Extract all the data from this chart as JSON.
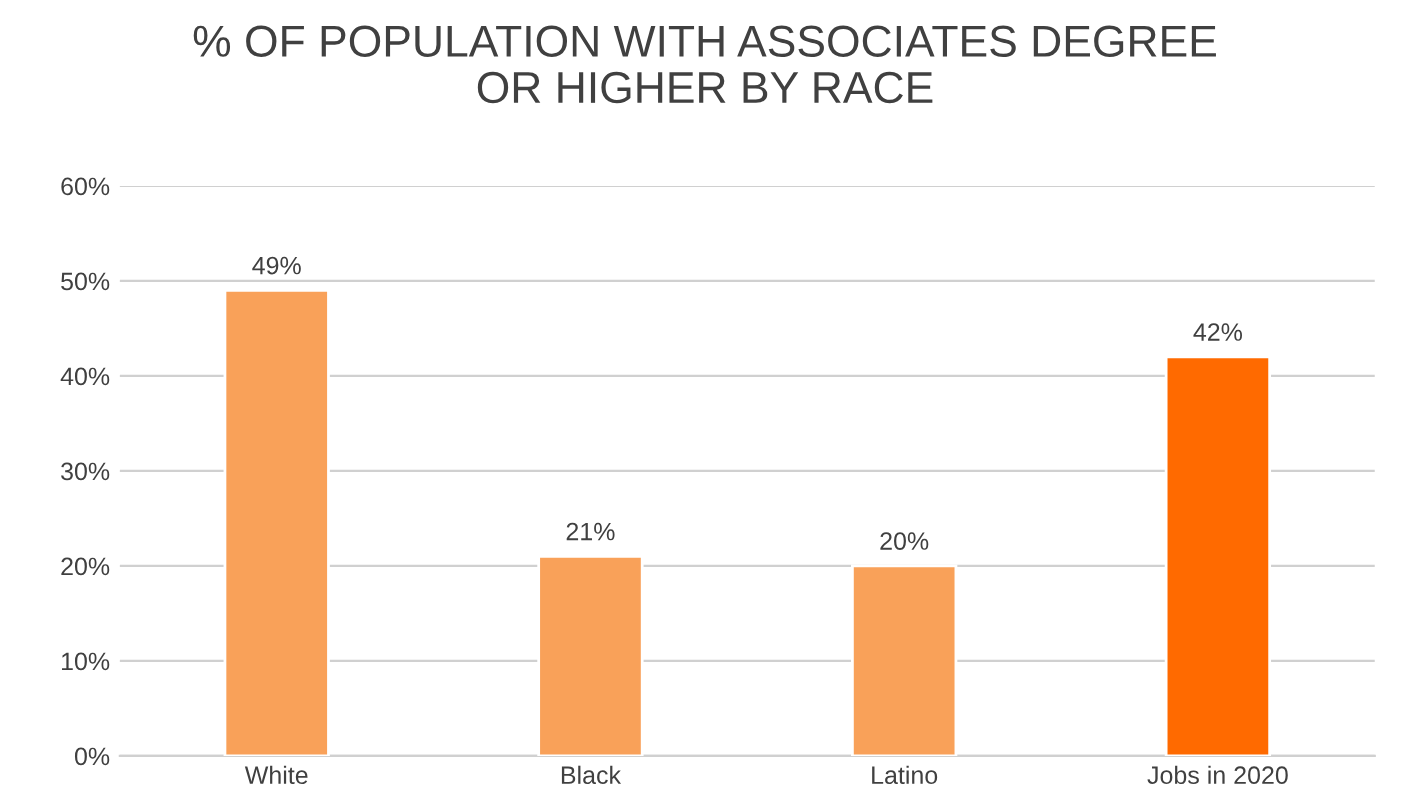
{
  "chart_data": {
    "type": "bar",
    "title": "% OF POPULATION WITH ASSOCIATES DEGREE\nOR HIGHER BY RACE",
    "categories": [
      "White",
      "Black",
      "Latino",
      "Jobs in 2020"
    ],
    "values": [
      49,
      21,
      20,
      42
    ],
    "colors": [
      "#f9a159",
      "#f9a159",
      "#f9a159",
      "#ff6a00"
    ],
    "value_labels": [
      "49%",
      "21%",
      "20%",
      "42%"
    ],
    "ylim": [
      0,
      60
    ],
    "yticks": [
      {
        "value": 0,
        "label": "0%"
      },
      {
        "value": 10,
        "label": "10%"
      },
      {
        "value": 20,
        "label": "20%"
      },
      {
        "value": 30,
        "label": "30%"
      },
      {
        "value": 40,
        "label": "40%"
      },
      {
        "value": 50,
        "label": "50%"
      },
      {
        "value": 60,
        "label": "60%"
      }
    ],
    "grid": "y"
  }
}
